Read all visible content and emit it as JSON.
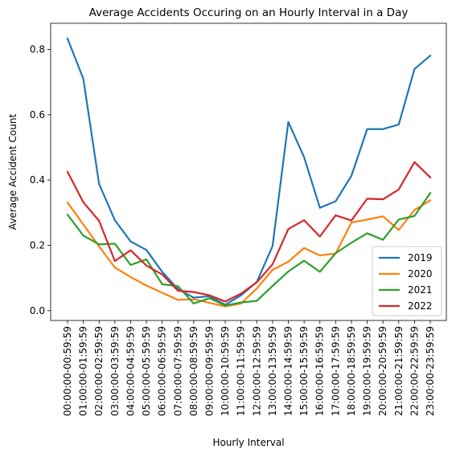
{
  "chart_data": {
    "type": "line",
    "title": "Average Accidents Occuring on an Hourly Interval in a Day",
    "xlabel": "Hourly Interval",
    "ylabel": "Average Accident Count",
    "ylim": [
      -0.03,
      0.88
    ],
    "yticks": [
      0.0,
      0.2,
      0.4,
      0.6,
      0.8
    ],
    "ytick_labels": [
      "0.0",
      "0.2",
      "0.4",
      "0.6",
      "0.8"
    ],
    "grid": false,
    "legend_position": "lower-right",
    "categories": [
      "00:00:00-00:59:59",
      "01:00:00-01:59:59",
      "02:00:00-02:59:59",
      "03:00:00-03:59:59",
      "04:00:00-04:59:59",
      "05:00:00-05:59:59",
      "06:00:00-06:59:59",
      "07:00:00-07:59:59",
      "08:00:00-08:59:59",
      "09:00:00-09:59:59",
      "10:00:00-10:59:59",
      "11:00:00-11:59:59",
      "12:00:00-12:59:59",
      "13:00:00-13:59:59",
      "14:00:00-14:59:59",
      "15:00:00-15:59:59",
      "16:00:00-16:59:59",
      "17:00:00-17:59:59",
      "18:00:00-18:59:59",
      "19:00:00-19:59:59",
      "20:00:00-20:59:59",
      "21:00:00-21:59:59",
      "22:00:00-22:59:59",
      "23:00:00-23:59:59"
    ],
    "series": [
      {
        "name": "2019",
        "color": "#1f77b4",
        "values": [
          0.833,
          0.71,
          0.388,
          0.277,
          0.212,
          0.186,
          0.119,
          0.066,
          0.04,
          0.044,
          0.018,
          0.047,
          0.088,
          0.198,
          0.578,
          0.47,
          0.315,
          0.335,
          0.413,
          0.556,
          0.556,
          0.57,
          0.74,
          0.781
        ]
      },
      {
        "name": "2020",
        "color": "#ff7f0e",
        "values": [
          0.331,
          0.264,
          0.197,
          0.132,
          0.103,
          0.077,
          0.055,
          0.033,
          0.035,
          0.024,
          0.013,
          0.022,
          0.068,
          0.125,
          0.15,
          0.192,
          0.169,
          0.175,
          0.27,
          0.279,
          0.289,
          0.247,
          0.308,
          0.338
        ]
      },
      {
        "name": "2021",
        "color": "#2ca02c",
        "values": [
          0.294,
          0.23,
          0.203,
          0.205,
          0.14,
          0.157,
          0.081,
          0.075,
          0.022,
          0.038,
          0.016,
          0.025,
          0.03,
          0.076,
          0.12,
          0.153,
          0.119,
          0.176,
          0.208,
          0.237,
          0.217,
          0.279,
          0.29,
          0.36
        ]
      },
      {
        "name": "2022",
        "color": "#d62728",
        "values": [
          0.425,
          0.332,
          0.275,
          0.152,
          0.185,
          0.138,
          0.111,
          0.061,
          0.057,
          0.047,
          0.028,
          0.052,
          0.087,
          0.142,
          0.25,
          0.277,
          0.227,
          0.292,
          0.276,
          0.343,
          0.341,
          0.371,
          0.455,
          0.408
        ]
      }
    ]
  }
}
